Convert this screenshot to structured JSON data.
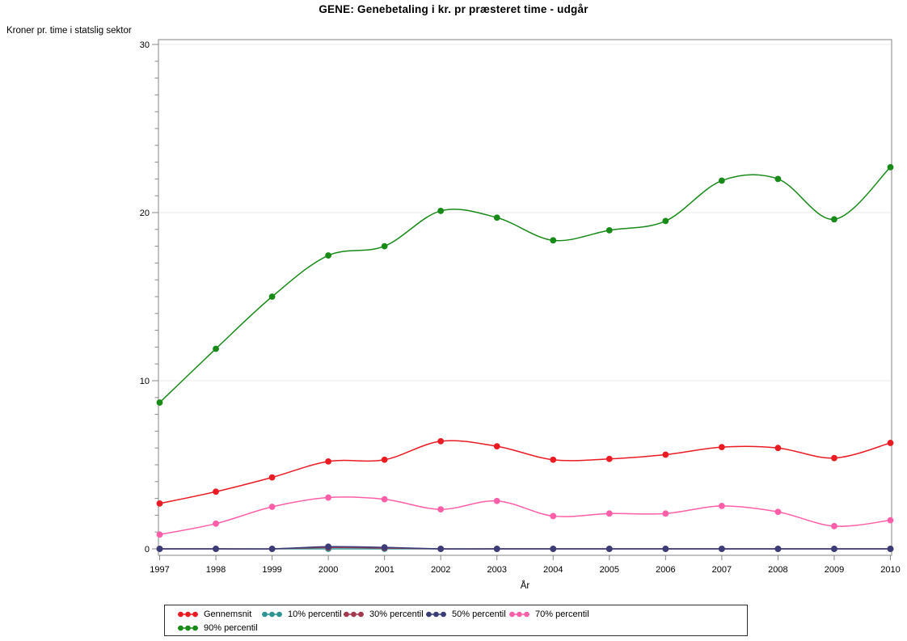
{
  "chart_data": {
    "type": "line",
    "title": "GENE: Genebetaling i kr. pr præsteret time - udgår",
    "ylabel": "Kroner pr. time i statslig sektor",
    "xlabel": "År",
    "x": [
      1997,
      1998,
      1999,
      2000,
      2001,
      2002,
      2003,
      2004,
      2005,
      2006,
      2007,
      2008,
      2009,
      2010
    ],
    "yticks": [
      0,
      10,
      20,
      30
    ],
    "ylim": [
      0,
      30
    ],
    "grid": true,
    "legend_position": "bottom",
    "line_style": "smooth-spline-with-dot-markers",
    "series": [
      {
        "name": "Gennemsnit",
        "color": "#ea1b23",
        "values": [
          2.7,
          3.4,
          4.25,
          5.2,
          5.3,
          6.4,
          6.1,
          5.3,
          5.35,
          5.6,
          6.05,
          6.0,
          5.4,
          6.3
        ]
      },
      {
        "name": "10% percentil",
        "color": "#2f9393",
        "values": [
          0,
          0,
          0,
          0,
          0,
          0,
          0,
          0,
          0,
          0,
          0,
          0,
          0,
          0
        ]
      },
      {
        "name": "30% percentil",
        "color": "#a23950",
        "values": [
          0,
          0,
          0,
          0.08,
          0.05,
          0,
          0,
          0,
          0,
          0,
          0,
          0,
          0,
          0
        ]
      },
      {
        "name": "50% percentil",
        "color": "#3c3c78",
        "values": [
          0,
          0,
          0,
          0.13,
          0.09,
          0,
          0,
          0,
          0,
          0,
          0,
          0,
          0,
          0
        ]
      },
      {
        "name": "70% percentil",
        "color": "#ff5fa8",
        "values": [
          0.85,
          1.5,
          2.5,
          3.05,
          2.95,
          2.35,
          2.85,
          1.95,
          2.1,
          2.1,
          2.55,
          2.2,
          1.35,
          1.7
        ]
      },
      {
        "name": "90% percentil",
        "color": "#178a17",
        "values": [
          8.7,
          11.9,
          15.0,
          17.45,
          18.0,
          20.1,
          19.7,
          18.35,
          18.95,
          19.5,
          21.9,
          22.0,
          19.6,
          22.7
        ]
      }
    ]
  },
  "colors": {
    "frame": "#999999",
    "grid": "#e9e9e9",
    "tick": "#888888",
    "text": "#000000",
    "background": "#ffffff"
  }
}
